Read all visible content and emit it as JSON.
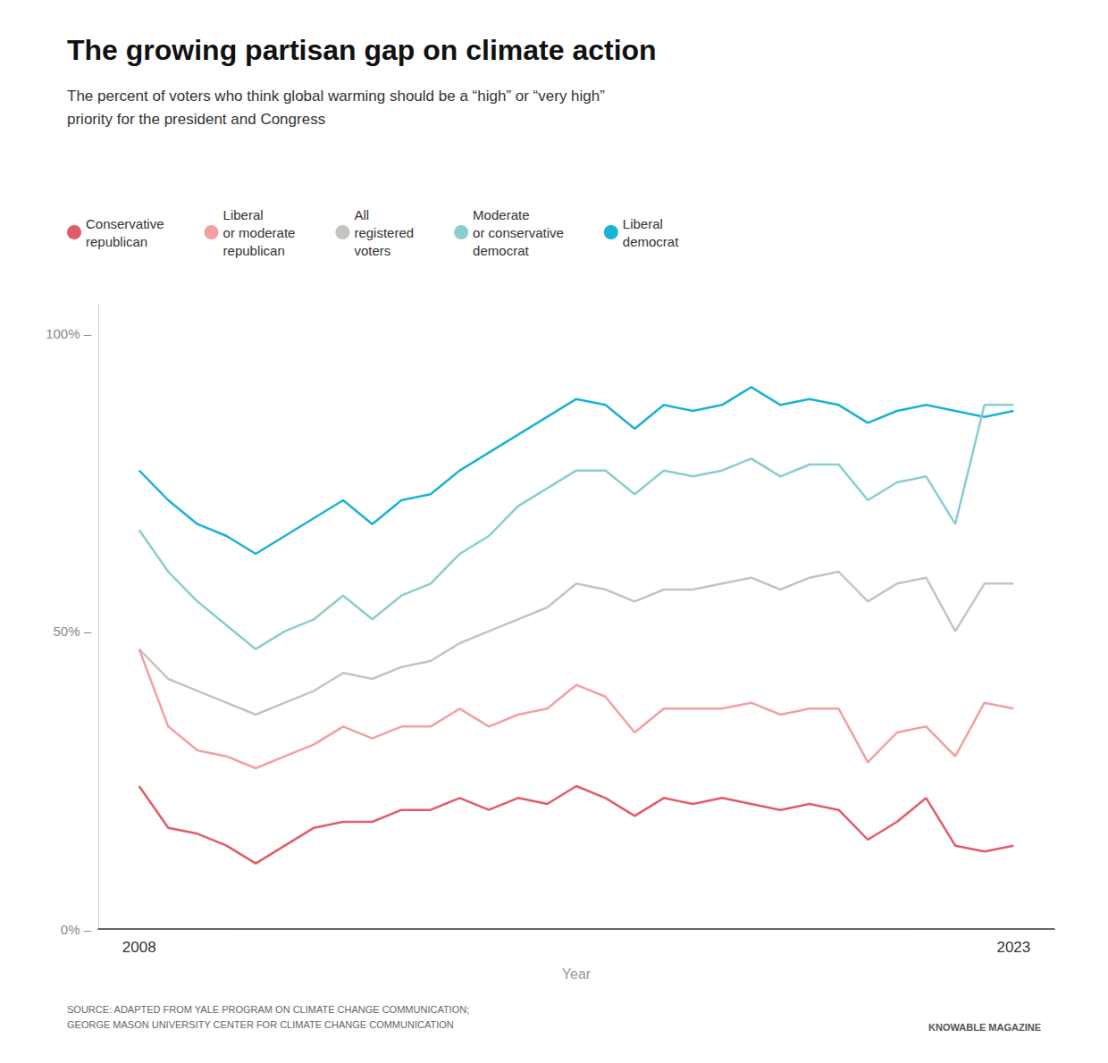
{
  "chart_data": {
    "type": "line",
    "title": "The growing partisan gap on climate action",
    "subtitle": "The percent of voters who think global warming should be a “high” or “very high”\npriority for the president and Congress",
    "xlabel": "Year",
    "annotations": [
      "SOURCE: ADAPTED FROM YALE PROGRAM ON CLIMATE CHANGE COMMUNICATION;\nGEORGE MASON UNIVERSITY CENTER FOR CLIMATE CHANGE COMMUNICATION",
      "KNOWABLE MAGAZINE"
    ],
    "x": [
      2008,
      2008.5,
      2009,
      2009.5,
      2010,
      2010.5,
      2011,
      2011.5,
      2012,
      2012.5,
      2013,
      2013.5,
      2014,
      2014.5,
      2015,
      2015.5,
      2016,
      2016.5,
      2017,
      2017.5,
      2018,
      2018.5,
      2019,
      2019.5,
      2020,
      2020.5,
      2021,
      2021.5,
      2022,
      2022.5,
      2023
    ],
    "series": [
      {
        "name": "Liberal\ndemocrat",
        "color": "#1ab2d5",
        "values": [
          77,
          72,
          68,
          66,
          63,
          66,
          69,
          72,
          68,
          72,
          73,
          77,
          80,
          83,
          86,
          89,
          88,
          84,
          88,
          87,
          88,
          91,
          88,
          89,
          88,
          85,
          87,
          88,
          87,
          86,
          87
        ]
      },
      {
        "name": "Moderate\nor conservative\ndemocrat",
        "color": "#89cece",
        "values": [
          67,
          60,
          55,
          51,
          47,
          50,
          52,
          56,
          52,
          56,
          58,
          63,
          66,
          71,
          74,
          77,
          77,
          73,
          77,
          76,
          77,
          79,
          76,
          78,
          78,
          72,
          75,
          76,
          68,
          88,
          88
        ]
      },
      {
        "name": "All\nregistered\nvoters",
        "color": "#c5c5bc",
        "values": [
          47,
          42,
          40,
          38,
          36,
          38,
          40,
          43,
          42,
          44,
          45,
          48,
          50,
          52,
          54,
          58,
          57,
          55,
          57,
          57,
          58,
          59,
          57,
          59,
          60,
          55,
          58,
          59,
          50,
          58,
          58
        ]
      },
      {
        "name": "Liberal\nor moderate\nrepublican",
        "color": "#f2a0a2",
        "values": [
          47,
          34,
          30,
          29,
          27,
          29,
          31,
          34,
          32,
          34,
          34,
          37,
          34,
          36,
          37,
          41,
          39,
          33,
          37,
          37,
          37,
          38,
          36,
          37,
          37,
          28,
          33,
          34,
          29,
          38,
          37
        ]
      },
      {
        "name": "Conservative\nrepublican",
        "color": "#e05c6a",
        "values": [
          24,
          17,
          16,
          14,
          11,
          14,
          17,
          18,
          18,
          20,
          20,
          22,
          20,
          22,
          21,
          24,
          22,
          19,
          22,
          21,
          22,
          21,
          20,
          21,
          20,
          15,
          18,
          22,
          14,
          13,
          14
        ]
      }
    ],
    "xlim": [
      2007.3,
      2023.7
    ],
    "xticks": [
      2008,
      2023
    ],
    "ylim": [
      0,
      105
    ],
    "yticks": [
      {
        "value": 0,
        "label": "0% –"
      },
      {
        "value": 50,
        "label": "50% –"
      },
      {
        "value": 100,
        "label": "100% –"
      }
    ],
    "grid": false,
    "legend": "top"
  }
}
